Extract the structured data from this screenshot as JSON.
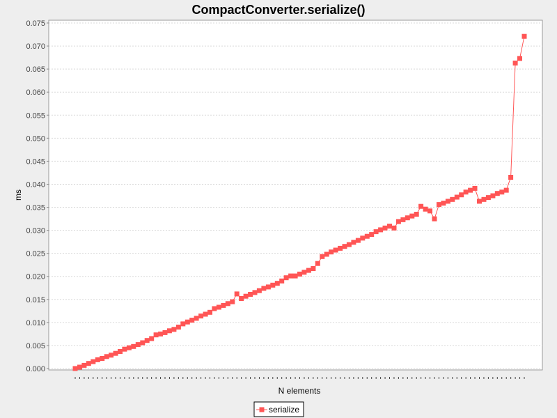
{
  "chart_data": {
    "type": "line",
    "title": "CompactConverter.serialize()",
    "xlabel": "N elements",
    "ylabel": "ms",
    "ylim": [
      0,
      0.075
    ],
    "yticks": [
      "0.000",
      "0.005",
      "0.010",
      "0.015",
      "0.020",
      "0.025",
      "0.030",
      "0.035",
      "0.040",
      "0.045",
      "0.050",
      "0.055",
      "0.060",
      "0.065",
      "0.070",
      "0.075"
    ],
    "grid": true,
    "legend": "bottom-center",
    "colors": {
      "series": "#ff5555",
      "grid": "#d9d9d9",
      "plot_bg": "#ffffff",
      "page_bg": "#eeeeee"
    },
    "series": [
      {
        "name": "serialize",
        "values": [
          0.0,
          0.0003,
          0.0007,
          0.0011,
          0.0015,
          0.0019,
          0.0022,
          0.0026,
          0.0029,
          0.0033,
          0.0037,
          0.0042,
          0.0045,
          0.0048,
          0.0052,
          0.0056,
          0.0061,
          0.0065,
          0.0073,
          0.0075,
          0.0078,
          0.0082,
          0.0085,
          0.009,
          0.0097,
          0.0101,
          0.0105,
          0.0109,
          0.0114,
          0.0118,
          0.0122,
          0.013,
          0.0133,
          0.0137,
          0.0141,
          0.0145,
          0.0162,
          0.0152,
          0.0157,
          0.0161,
          0.0165,
          0.0169,
          0.0174,
          0.0177,
          0.0181,
          0.0185,
          0.019,
          0.0197,
          0.0201,
          0.0201,
          0.0205,
          0.0209,
          0.0213,
          0.0217,
          0.0228,
          0.0243,
          0.0248,
          0.0253,
          0.0257,
          0.0261,
          0.0265,
          0.0269,
          0.0274,
          0.0278,
          0.0283,
          0.0287,
          0.0291,
          0.0297,
          0.0301,
          0.0305,
          0.0309,
          0.0305,
          0.0319,
          0.0323,
          0.0327,
          0.0331,
          0.0335,
          0.0352,
          0.0346,
          0.0342,
          0.0325,
          0.0356,
          0.0359,
          0.0363,
          0.0367,
          0.0372,
          0.0377,
          0.0383,
          0.0387,
          0.0391,
          0.0363,
          0.0367,
          0.0371,
          0.0375,
          0.038,
          0.0383,
          0.0387,
          0.0415,
          0.0663,
          0.0673,
          0.0721
        ]
      }
    ]
  }
}
